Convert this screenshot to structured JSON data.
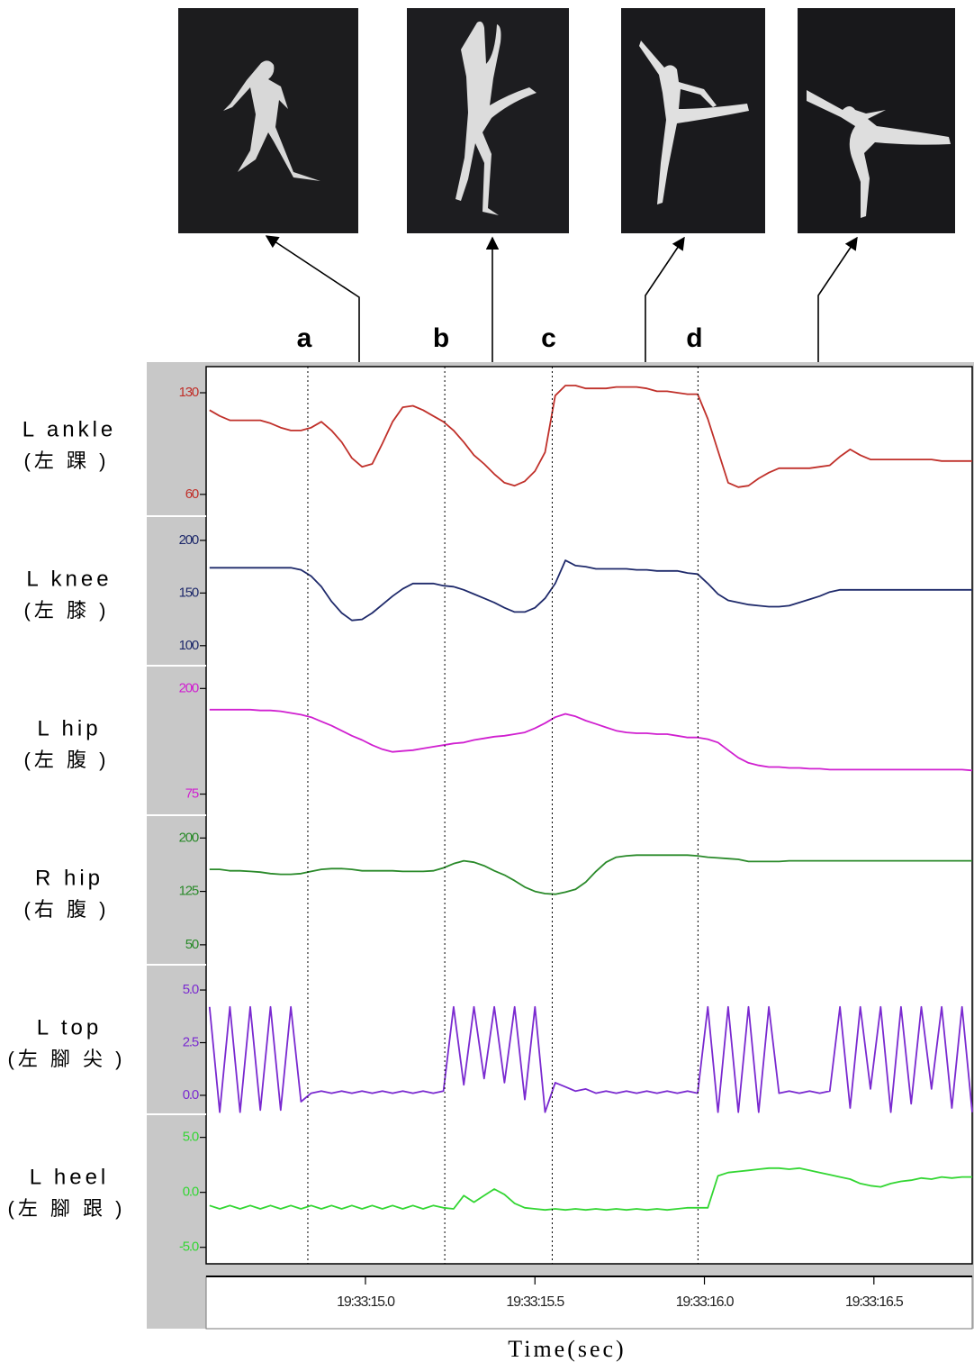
{
  "chart_data": {
    "type": "line",
    "xlabel": "Time(sec)",
    "x": [
      14.54,
      14.57,
      14.6,
      14.63,
      14.66,
      14.69,
      14.72,
      14.75,
      14.78,
      14.81,
      14.84,
      14.87,
      14.9,
      14.93,
      14.96,
      14.99,
      15.02,
      15.05,
      15.08,
      15.11,
      15.14,
      15.17,
      15.2,
      15.23,
      15.26,
      15.29,
      15.32,
      15.35,
      15.38,
      15.41,
      15.44,
      15.47,
      15.5,
      15.53,
      15.56,
      15.59,
      15.62,
      15.65,
      15.68,
      15.71,
      15.74,
      15.77,
      15.8,
      15.83,
      15.86,
      15.89,
      15.92,
      15.95,
      15.98,
      16.01,
      16.04,
      16.07,
      16.1,
      16.13,
      16.16,
      16.19,
      16.22,
      16.25,
      16.28,
      16.31,
      16.34,
      16.37,
      16.4,
      16.43,
      16.46,
      16.49,
      16.52,
      16.55,
      16.58,
      16.61,
      16.64,
      16.67,
      16.7,
      16.73,
      16.76,
      16.79
    ],
    "xlim": [
      14.53,
      16.79
    ],
    "xticks": [
      {
        "value": 15.0,
        "label": "19:33:15.0"
      },
      {
        "value": 15.5,
        "label": "19:33:15.5"
      },
      {
        "value": 16.0,
        "label": "19:33:16.0"
      },
      {
        "value": 16.5,
        "label": "19:33:16.5"
      }
    ],
    "markers": [
      {
        "label": "a",
        "x": 14.83
      },
      {
        "label": "b",
        "x": 15.234
      },
      {
        "label": "c",
        "x": 15.551
      },
      {
        "label": "d",
        "x": 15.981
      }
    ],
    "series": [
      {
        "name": "L ankle",
        "name_zh": "(左 踝 )",
        "color": "#c0302a",
        "ylim": [
          45,
          148
        ],
        "yticks": [
          60,
          130
        ],
        "values": [
          118,
          114,
          111,
          111,
          111,
          111,
          109,
          106,
          104,
          104,
          106,
          110,
          104,
          96,
          85,
          79,
          81,
          95,
          110,
          120,
          121,
          118,
          114,
          110,
          104,
          96,
          87,
          81,
          74,
          68,
          66,
          69,
          76,
          89,
          128,
          135,
          135,
          133,
          133,
          133,
          134,
          134,
          134,
          133,
          131,
          131,
          130,
          129,
          129,
          112,
          90,
          68,
          65,
          66,
          71,
          75,
          78,
          78,
          78,
          78,
          79,
          80,
          86,
          91,
          87,
          84,
          84,
          84,
          84,
          84,
          84,
          84,
          83,
          83,
          83,
          83
        ]
      },
      {
        "name": "L knee",
        "name_zh": "(左 膝 )",
        "color": "#1f2a6b",
        "ylim": [
          81,
          223
        ],
        "yticks": [
          100,
          150,
          200
        ],
        "values": [
          174,
          174,
          174,
          174,
          174,
          174,
          174,
          174,
          174,
          172,
          166,
          156,
          142,
          131,
          124,
          125,
          131,
          139,
          147,
          154,
          159,
          159,
          159,
          157,
          156,
          153,
          149,
          145,
          141,
          136,
          132,
          132,
          136,
          145,
          159,
          181,
          176,
          175,
          173,
          173,
          173,
          173,
          172,
          172,
          171,
          171,
          171,
          169,
          168,
          159,
          149,
          143,
          141,
          139,
          138,
          137,
          137,
          138,
          141,
          144,
          147,
          151,
          153,
          153,
          153,
          153,
          153,
          153,
          153,
          153,
          153,
          153,
          153,
          153,
          153,
          153
        ]
      },
      {
        "name": "L hip",
        "name_zh": "(左 腹 )",
        "color": "#d020d0",
        "ylim": [
          50,
          227
        ],
        "yticks": [
          75,
          200
        ],
        "values": [
          175,
          175,
          175,
          175,
          175,
          174,
          174,
          173,
          171,
          169,
          166,
          161,
          156,
          150,
          144,
          139,
          133,
          128,
          125,
          126,
          127,
          129,
          131,
          133,
          135,
          136,
          139,
          141,
          143,
          144,
          146,
          148,
          153,
          159,
          166,
          170,
          167,
          162,
          158,
          154,
          150,
          148,
          147,
          147,
          146,
          146,
          144,
          142,
          142,
          140,
          136,
          127,
          118,
          112,
          109,
          107,
          107,
          106,
          106,
          105,
          105,
          104,
          104,
          104,
          104,
          104,
          104,
          104,
          104,
          104,
          104,
          104,
          104,
          104,
          104,
          103
        ]
      },
      {
        "name": "R hip",
        "name_zh": "(右 腹 )",
        "color": "#2a8a2a",
        "ylim": [
          22,
          232
        ],
        "yticks": [
          50,
          125,
          200
        ],
        "values": [
          156,
          156,
          154,
          154,
          153,
          152,
          150,
          149,
          149,
          150,
          153,
          156,
          157,
          157,
          156,
          154,
          154,
          154,
          154,
          153,
          153,
          153,
          154,
          158,
          164,
          168,
          166,
          161,
          154,
          148,
          140,
          131,
          125,
          122,
          121,
          124,
          128,
          138,
          153,
          166,
          173,
          175,
          176,
          176,
          176,
          176,
          176,
          176,
          175,
          173,
          172,
          171,
          170,
          167,
          167,
          167,
          167,
          168,
          168,
          168,
          168,
          168,
          168,
          168,
          168,
          168,
          168,
          168,
          168,
          168,
          168,
          168,
          168,
          168,
          168,
          168
        ]
      },
      {
        "name": "L top",
        "name_zh": "(左 腳 尖 )",
        "color": "#7a2ad0",
        "ylim": [
          -0.9,
          6.2
        ],
        "yticks": [
          {
            "value": 0,
            "label": "0.0"
          },
          2.5,
          {
            "value": 5,
            "label": "5.0"
          }
        ],
        "values": [
          4.2,
          -0.8,
          4.2,
          -0.8,
          4.2,
          -0.7,
          4.2,
          -0.7,
          4.2,
          -0.3,
          0.1,
          0.2,
          0.1,
          0.2,
          0.1,
          0.2,
          0.1,
          0.2,
          0.1,
          0.2,
          0.1,
          0.2,
          0.1,
          0.2,
          4.2,
          0.5,
          4.2,
          0.8,
          4.2,
          0.6,
          4.2,
          -0.2,
          4.2,
          -0.8,
          0.6,
          0.4,
          0.2,
          0.3,
          0.1,
          0.2,
          0.1,
          0.2,
          0.1,
          0.2,
          0.1,
          0.2,
          0.1,
          0.2,
          0.1,
          4.2,
          -0.8,
          4.2,
          -0.8,
          4.2,
          -0.8,
          4.2,
          0.1,
          0.2,
          0.1,
          0.2,
          0.1,
          0.2,
          4.2,
          -0.6,
          4.2,
          0.3,
          4.2,
          -0.8,
          4.2,
          -0.4,
          4.2,
          0.3,
          4.2,
          -0.6,
          4.2,
          -0.8
        ]
      },
      {
        "name": "L heel",
        "name_zh": "(左 腳 跟 )",
        "color": "#33d633",
        "ylim": [
          -6.5,
          7.1
        ],
        "yticks": [
          {
            "value": -5,
            "label": "-5.0"
          },
          {
            "value": 0,
            "label": "0.0"
          },
          {
            "value": 5,
            "label": "5.0"
          }
        ],
        "values": [
          -1.2,
          -1.5,
          -1.2,
          -1.5,
          -1.2,
          -1.5,
          -1.2,
          -1.5,
          -1.2,
          -1.5,
          -1.2,
          -1.5,
          -1.2,
          -1.5,
          -1.2,
          -1.5,
          -1.2,
          -1.5,
          -1.2,
          -1.5,
          -1.2,
          -1.5,
          -1.2,
          -1.4,
          -1.5,
          -0.3,
          -0.9,
          -0.3,
          0.3,
          -0.2,
          -1.0,
          -1.4,
          -1.5,
          -1.6,
          -1.5,
          -1.6,
          -1.5,
          -1.6,
          -1.5,
          -1.6,
          -1.5,
          -1.6,
          -1.5,
          -1.6,
          -1.5,
          -1.6,
          -1.5,
          -1.4,
          -1.4,
          -1.4,
          1.5,
          1.8,
          1.9,
          2.0,
          2.1,
          2.2,
          2.2,
          2.1,
          2.2,
          2.0,
          1.8,
          1.6,
          1.4,
          1.2,
          0.8,
          0.6,
          0.5,
          0.8,
          1.0,
          1.1,
          1.3,
          1.2,
          1.4,
          1.3,
          1.4,
          1.4
        ]
      }
    ]
  }
}
